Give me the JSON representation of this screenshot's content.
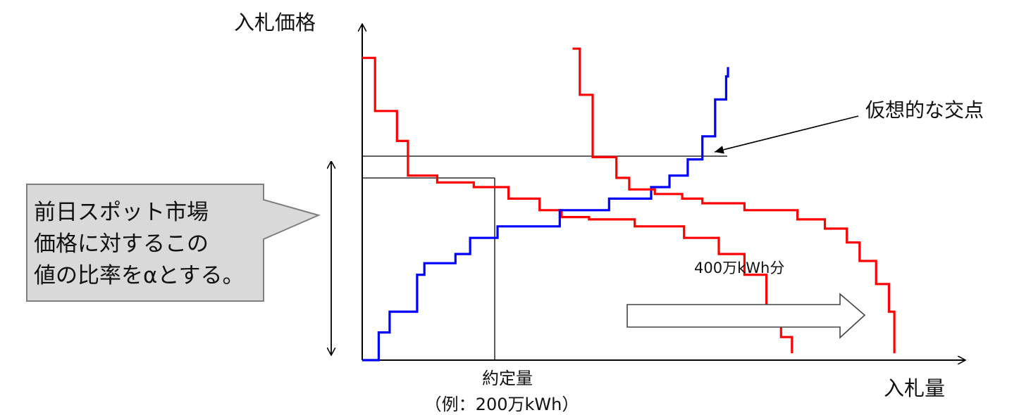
{
  "axes": {
    "y_label": "入札価格",
    "x_label": "入札量"
  },
  "annotations": {
    "intersection_label": "仮想的な交点",
    "shift_label": "400万kWh分",
    "contract_label_line1": "約定量",
    "contract_label_line2": "（例：200万kWh）"
  },
  "callout": {
    "line1": "前日スポット市場",
    "line2": "価格に対するこの",
    "line3": "値の比率をαとする。"
  },
  "colors": {
    "sell_curve": "#ff0000",
    "buy_curve": "#0000ff",
    "callout_fill": "#d9d9d9",
    "axis": "#000000"
  },
  "chart_data": {
    "type": "line",
    "title": "",
    "xlabel": "入札量",
    "ylabel": "入札価格",
    "series": [
      {
        "color": "#ff0000",
        "x": [
          0,
          0.7,
          1.9,
          2.5,
          4.1,
          6.1,
          8.0,
          9.7,
          10.9,
          12.4,
          14.9,
          17.6,
          19.5,
          20.9,
          22.1,
          22.9,
          23.5
        ],
        "y": [
          11.6,
          9.3,
          8.0,
          6.5,
          6.2,
          6.0,
          5.5,
          5.0,
          4.7,
          4.6,
          4.3,
          3.8,
          3.1,
          2.2,
          0.8,
          -0.5,
          -1.2
        ]
      },
      {
        "color": "#0000ff",
        "x": [
          0,
          0.9,
          1.5,
          3.0,
          3.4,
          5.1,
          5.9,
          7.4,
          10.8,
          13.5,
          15.8,
          16.8,
          17.8,
          18.6,
          19.3,
          19.9,
          20.0
        ],
        "y": [
          -1.5,
          -0.3,
          0.6,
          2.2,
          2.7,
          3.1,
          3.8,
          4.3,
          5.0,
          5.5,
          6.0,
          6.5,
          7.2,
          8.2,
          9.8,
          10.8,
          11.2
        ]
      },
      {
        "color": "#ff0000",
        "x": [
          11.5,
          11.9,
          12.6,
          13.9,
          14.6,
          16.0,
          17.5,
          18.6,
          20.9,
          23.8,
          25.3,
          26.5,
          27.2,
          28.1,
          28.8,
          29.1
        ],
        "y": [
          12.0,
          10.0,
          7.3,
          6.4,
          5.9,
          5.7,
          5.5,
          5.3,
          5.0,
          4.6,
          4.2,
          3.6,
          2.8,
          1.8,
          0.6,
          -1.2
        ]
      }
    ]
  }
}
